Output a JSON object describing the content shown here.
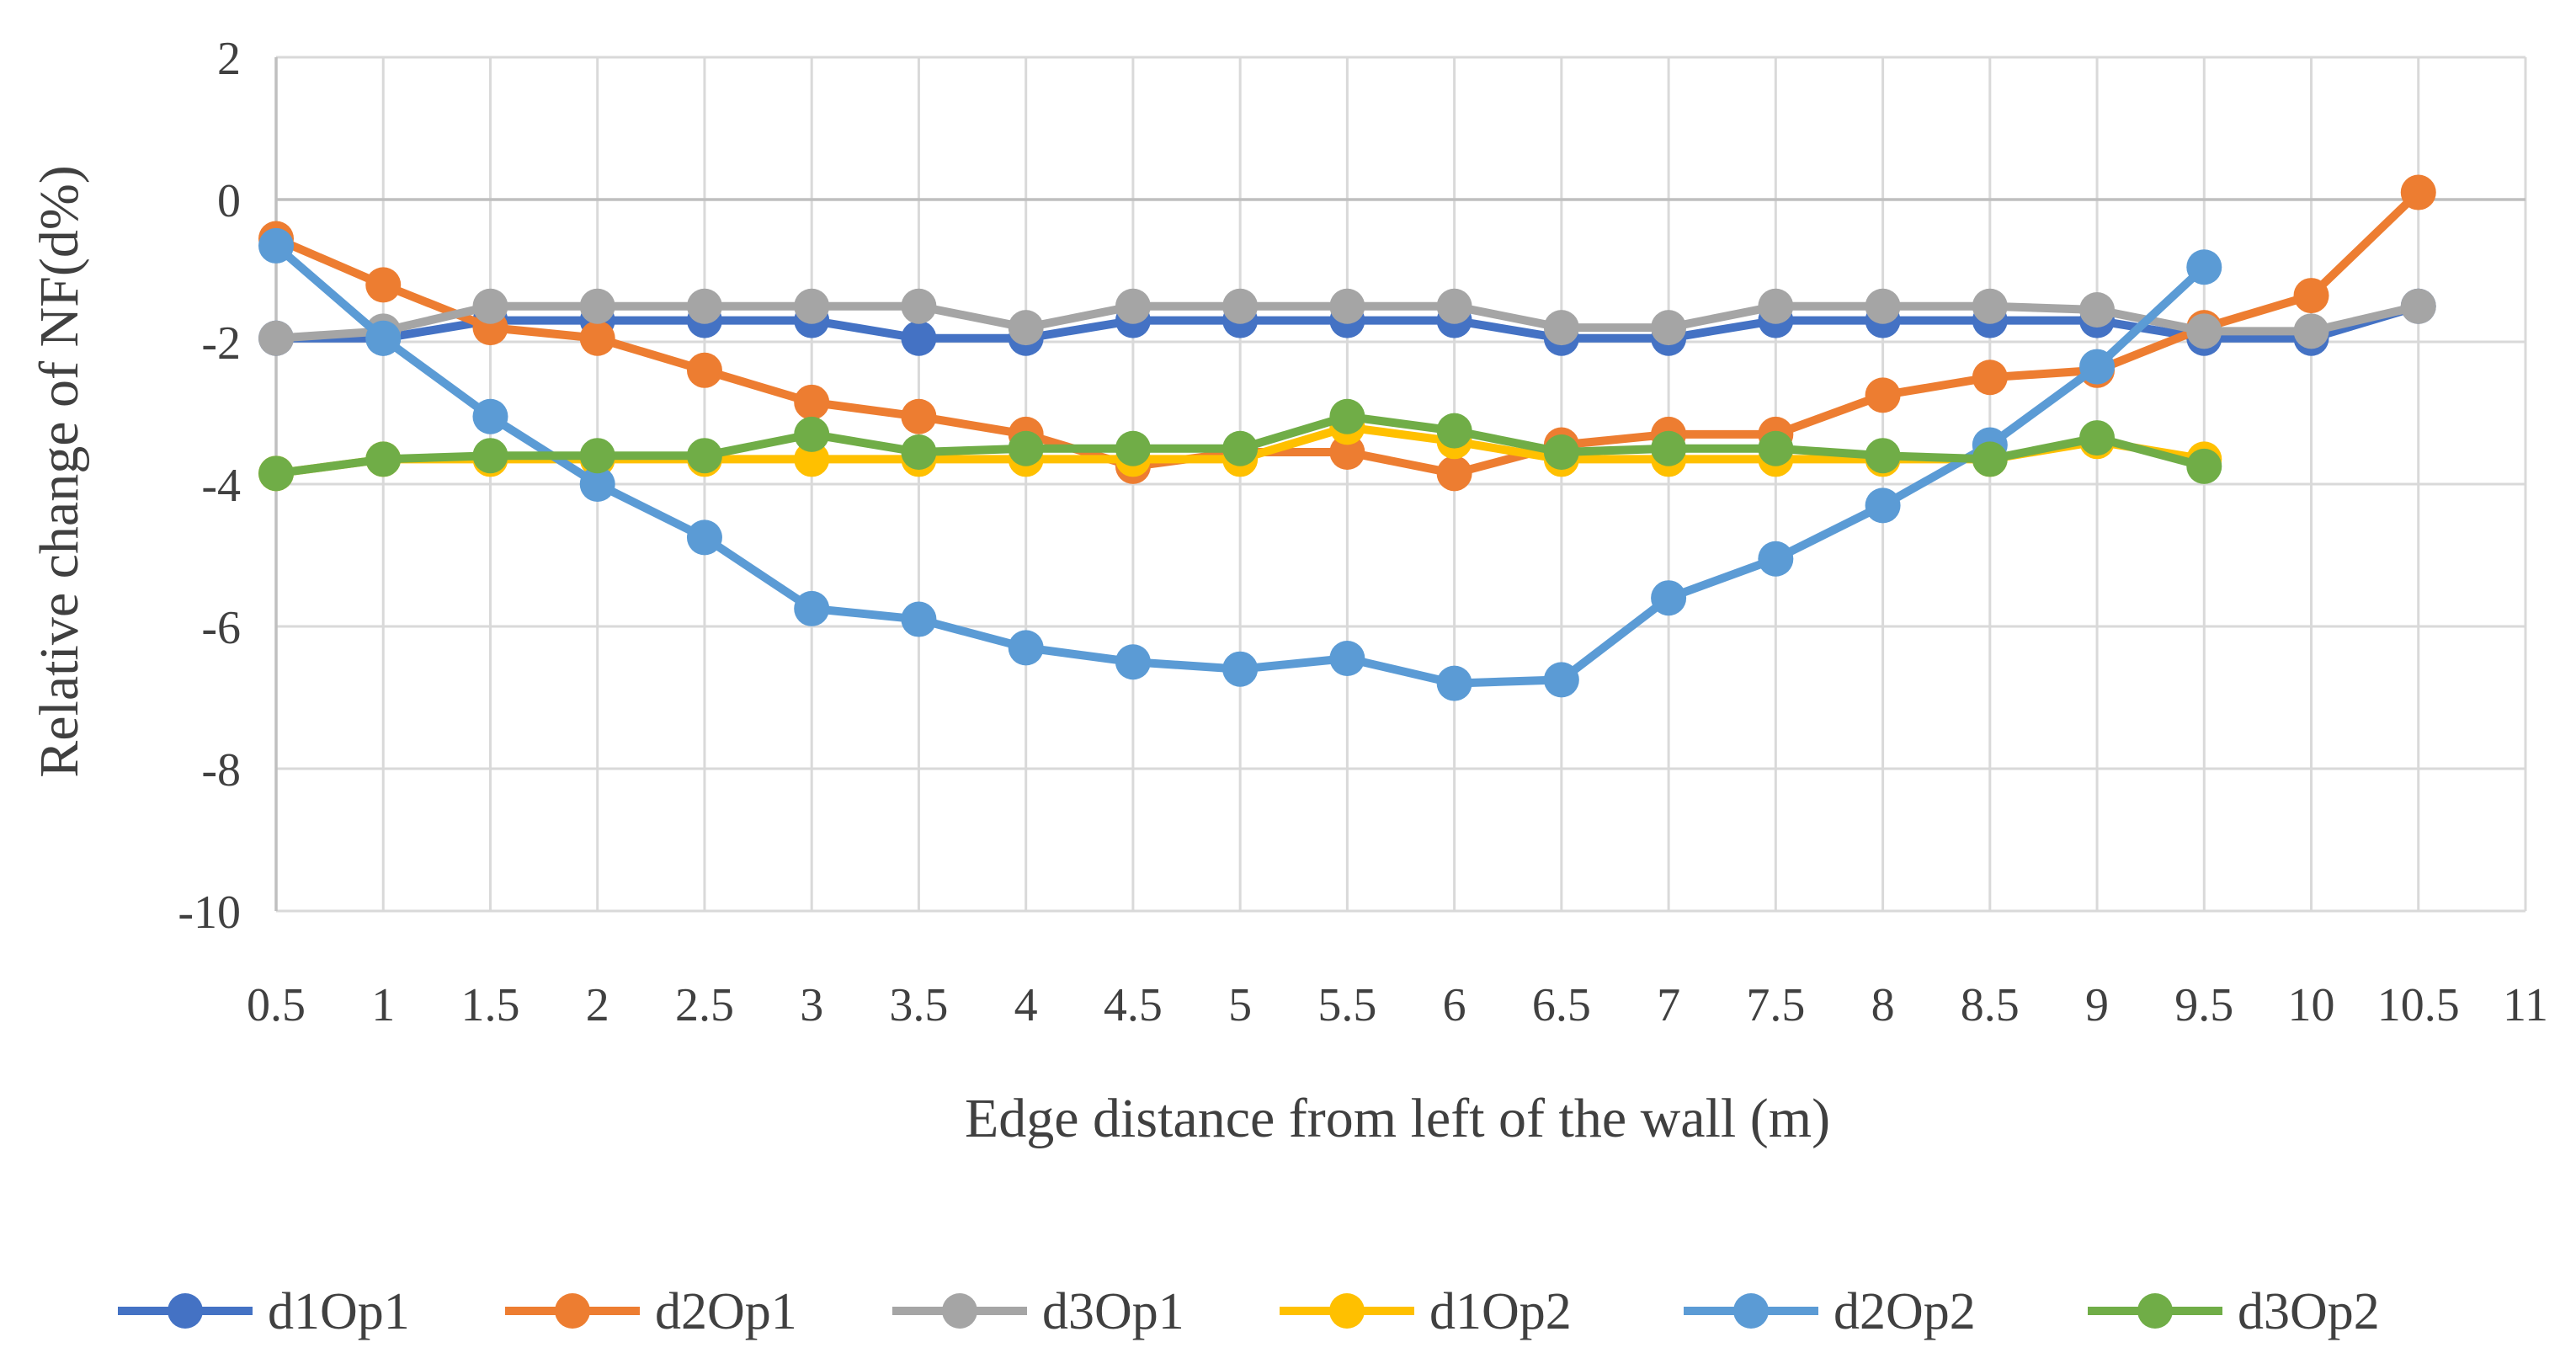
{
  "chart_data": {
    "type": "line",
    "title": "",
    "xlabel": "Edge distance from left of the wall (m)",
    "ylabel": "Relative change of NF(d%)",
    "x": [
      0.5,
      1,
      1.5,
      2,
      2.5,
      3,
      3.5,
      4,
      4.5,
      5,
      5.5,
      6,
      6.5,
      7,
      7.5,
      8,
      8.5,
      9,
      9.5,
      10,
      10.5
    ],
    "x_tick_labels": [
      "0.5",
      "1",
      "1.5",
      "2",
      "2.5",
      "3",
      "3.5",
      "4",
      "4.5",
      "5",
      "5.5",
      "6",
      "6.5",
      "7",
      "7.5",
      "8",
      "8.5",
      "9",
      "9.5",
      "10",
      "10.5",
      "11"
    ],
    "xlim": [
      0.5,
      11
    ],
    "ylim": [
      -10,
      2
    ],
    "y_ticks": [
      2,
      0,
      -2,
      -4,
      -6,
      -8,
      -10
    ],
    "y_tick_labels": [
      "2",
      "0",
      "-2",
      "-4",
      "-6",
      "-8",
      "-10"
    ],
    "grid": true,
    "legend_position": "bottom",
    "series": [
      {
        "name": "d1Op1",
        "color": "#4472C4",
        "values": [
          -1.95,
          -1.95,
          -1.7,
          -1.7,
          -1.7,
          -1.7,
          -1.95,
          -1.95,
          -1.7,
          -1.7,
          -1.7,
          -1.7,
          -1.95,
          -1.95,
          -1.7,
          -1.7,
          -1.7,
          -1.7,
          -1.95,
          -1.95,
          -1.5
        ]
      },
      {
        "name": "d2Op1",
        "color": "#ED7D31",
        "values": [
          -0.55,
          -1.2,
          -1.8,
          -1.95,
          -2.4,
          -2.85,
          -3.05,
          -3.3,
          -3.75,
          -3.55,
          -3.55,
          -3.85,
          -3.45,
          -3.3,
          -3.3,
          -2.75,
          -2.5,
          -2.4,
          -1.8,
          -1.35,
          0.1
        ]
      },
      {
        "name": "d3Op1",
        "color": "#A5A5A5",
        "values": [
          -1.95,
          -1.85,
          -1.5,
          -1.5,
          -1.5,
          -1.5,
          -1.5,
          -1.8,
          -1.5,
          -1.5,
          -1.5,
          -1.5,
          -1.8,
          -1.8,
          -1.5,
          -1.5,
          -1.5,
          -1.55,
          -1.85,
          -1.85,
          -1.5
        ]
      },
      {
        "name": "d1Op2",
        "color": "#FFC000",
        "values": [
          -3.85,
          -3.65,
          -3.65,
          -3.65,
          -3.65,
          -3.65,
          -3.65,
          -3.65,
          -3.65,
          -3.65,
          -3.2,
          -3.4,
          -3.65,
          -3.65,
          -3.65,
          -3.65,
          -3.65,
          -3.4,
          -3.65,
          null,
          null
        ]
      },
      {
        "name": "d2Op2",
        "color": "#5B9BD5",
        "values": [
          -0.65,
          -1.95,
          -3.05,
          -4.0,
          -4.75,
          -5.75,
          -5.9,
          -6.3,
          -6.5,
          -6.6,
          -6.45,
          -6.8,
          -6.75,
          -5.6,
          -5.05,
          -4.3,
          -3.45,
          -2.35,
          -0.95,
          null,
          null
        ]
      },
      {
        "name": "d3Op2",
        "color": "#70AD47",
        "values": [
          -3.85,
          -3.65,
          -3.6,
          -3.6,
          -3.6,
          -3.3,
          -3.55,
          -3.5,
          -3.5,
          -3.5,
          -3.05,
          -3.25,
          -3.55,
          -3.5,
          -3.5,
          -3.6,
          -3.65,
          -3.35,
          -3.75,
          null,
          null
        ]
      }
    ]
  }
}
